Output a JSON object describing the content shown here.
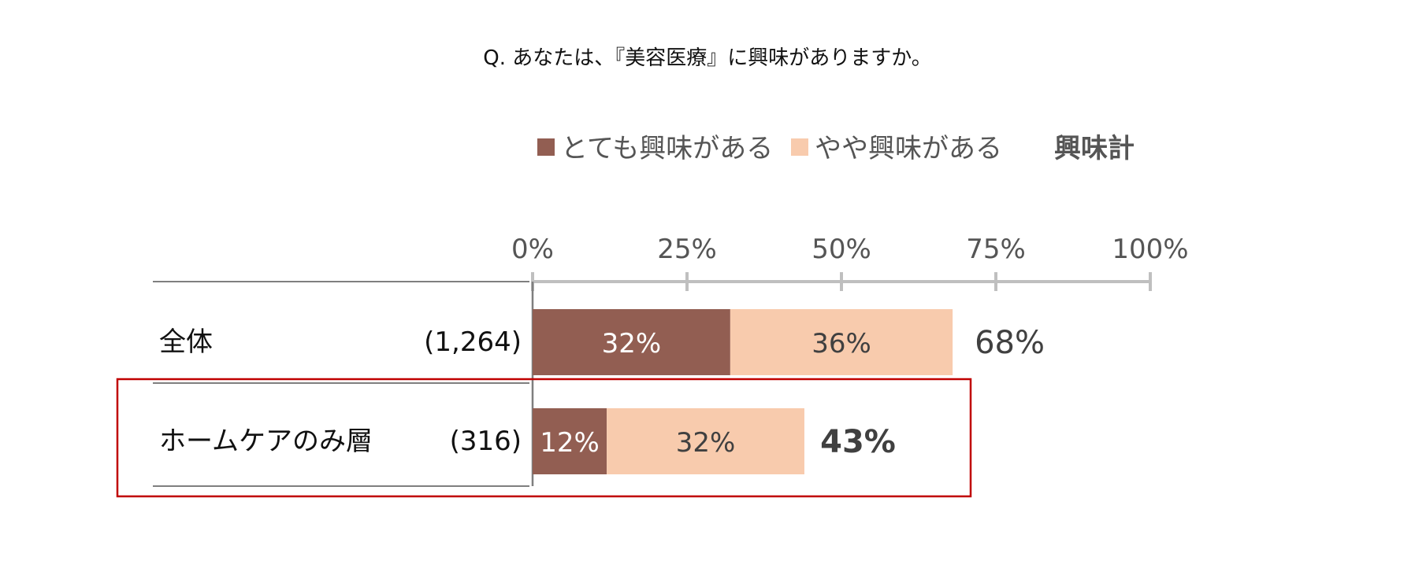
{
  "chart_data": {
    "type": "bar",
    "stacked": true,
    "orientation": "horizontal",
    "title": "Q. あなたは、『美容医療』に興味がありますか。",
    "categories": [
      "全体",
      "ホームケアのみ層"
    ],
    "sample_sizes": [
      "(1,264)",
      "(316)"
    ],
    "series": [
      {
        "name": "とても興味がある",
        "values": [
          32,
          12
        ],
        "labels": [
          "32%",
          "12%"
        ],
        "color": "#925e52",
        "label_color": "#ffffff"
      },
      {
        "name": "やや興味がある",
        "values": [
          36,
          32
        ],
        "labels": [
          "36%",
          "32%"
        ],
        "color": "#f8cbad",
        "label_color": "#404040"
      }
    ],
    "total_legend": "興味計",
    "totals": [
      68,
      43
    ],
    "total_labels": [
      "68%",
      "43%"
    ],
    "highlighted_category": "ホームケアのみ層",
    "highlight_color": "#c00000",
    "xlim": [
      0,
      100
    ],
    "ticks": [
      0,
      25,
      50,
      75,
      100
    ],
    "tick_labels": [
      "0%",
      "25%",
      "50%",
      "75%",
      "100%"
    ],
    "axis_color": "#bfbfbf",
    "legend_position": "top"
  }
}
